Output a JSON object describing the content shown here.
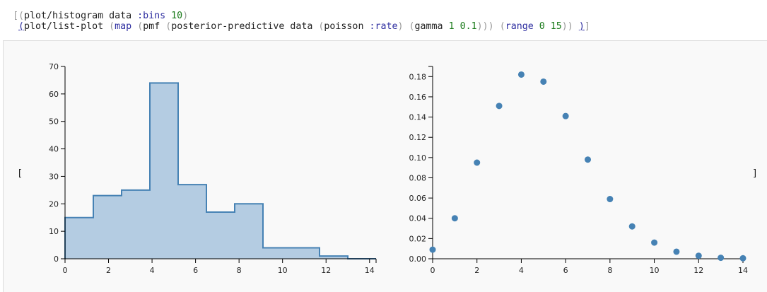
{
  "code": {
    "line1": [
      {
        "t": "[(",
        "c": "br"
      },
      {
        "t": "plot/histogram data ",
        "c": ""
      },
      {
        "t": ":bins",
        "c": "kw"
      },
      {
        "t": " ",
        "c": ""
      },
      {
        "t": "10",
        "c": "num"
      },
      {
        "t": ")",
        "c": "br"
      }
    ],
    "line2": [
      {
        "t": " ",
        "c": ""
      },
      {
        "t": "(",
        "c": "kw ul"
      },
      {
        "t": "plot/list-plot ",
        "c": ""
      },
      {
        "t": "(",
        "c": "br"
      },
      {
        "t": "map",
        "c": "kw"
      },
      {
        "t": " ",
        "c": ""
      },
      {
        "t": "(",
        "c": "br"
      },
      {
        "t": "pmf ",
        "c": ""
      },
      {
        "t": "(",
        "c": "br"
      },
      {
        "t": "posterior-predictive data ",
        "c": ""
      },
      {
        "t": "(",
        "c": "br"
      },
      {
        "t": "poisson ",
        "c": ""
      },
      {
        "t": ":rate",
        "c": "kw"
      },
      {
        "t": ")",
        "c": "br"
      },
      {
        "t": " ",
        "c": ""
      },
      {
        "t": "(",
        "c": "br"
      },
      {
        "t": "gamma ",
        "c": ""
      },
      {
        "t": "1",
        "c": "num"
      },
      {
        "t": " ",
        "c": ""
      },
      {
        "t": "0.1",
        "c": "num"
      },
      {
        "t": ")))",
        "c": "br"
      },
      {
        "t": " ",
        "c": ""
      },
      {
        "t": "(",
        "c": "br"
      },
      {
        "t": "range",
        "c": "kw"
      },
      {
        "t": " ",
        "c": ""
      },
      {
        "t": "0",
        "c": "num"
      },
      {
        "t": " ",
        "c": ""
      },
      {
        "t": "15",
        "c": "num"
      },
      {
        "t": "))",
        "c": "br"
      },
      {
        "t": " ",
        "c": ""
      },
      {
        "t": ")",
        "c": "kw ul"
      },
      {
        "t": "]",
        "c": "br"
      }
    ]
  },
  "output": {
    "open_bracket": "[",
    "close_bracket": "]"
  },
  "colors": {
    "bar_fill": "#b4cce2",
    "stroke": "#4682b4",
    "point": "#4682b4",
    "axis": "#000000"
  },
  "chart_data": [
    {
      "type": "bar",
      "bins": [
        {
          "x0": 0.0,
          "x1": 1.3,
          "value": 15
        },
        {
          "x0": 1.3,
          "x1": 2.6,
          "value": 23
        },
        {
          "x0": 2.6,
          "x1": 3.9,
          "value": 25
        },
        {
          "x0": 3.9,
          "x1": 5.2,
          "value": 64
        },
        {
          "x0": 5.2,
          "x1": 6.5,
          "value": 27
        },
        {
          "x0": 6.5,
          "x1": 7.8,
          "value": 17
        },
        {
          "x0": 7.8,
          "x1": 9.1,
          "value": 20
        },
        {
          "x0": 9.1,
          "x1": 11.7,
          "value": 4
        },
        {
          "x0": 11.7,
          "x1": 13.0,
          "value": 1
        },
        {
          "x0": 13.0,
          "x1": 14.3,
          "value": 0
        }
      ],
      "xlim": [
        0,
        14.3
      ],
      "ylim": [
        0,
        70
      ],
      "xticks": [
        "0",
        "2",
        "4",
        "6",
        "8",
        "10",
        "12",
        "14"
      ],
      "yticks": [
        "0",
        "10",
        "20",
        "30",
        "40",
        "50",
        "60",
        "70"
      ],
      "title": "",
      "xlabel": "",
      "ylabel": ""
    },
    {
      "type": "scatter",
      "x": [
        0,
        1,
        2,
        3,
        4,
        5,
        6,
        7,
        8,
        9,
        10,
        11,
        12,
        13,
        14
      ],
      "y": [
        0.009,
        0.04,
        0.095,
        0.151,
        0.182,
        0.175,
        0.141,
        0.098,
        0.059,
        0.032,
        0.016,
        0.007,
        0.003,
        0.001,
        0.0005
      ],
      "xlim": [
        0,
        14
      ],
      "ylim": [
        0,
        0.19
      ],
      "xticks": [
        "0",
        "2",
        "4",
        "6",
        "8",
        "10",
        "12",
        "14"
      ],
      "yticks": [
        "0.00",
        "0.02",
        "0.04",
        "0.06",
        "0.08",
        "0.10",
        "0.12",
        "0.14",
        "0.16",
        "0.18"
      ],
      "title": "",
      "xlabel": "",
      "ylabel": ""
    }
  ]
}
